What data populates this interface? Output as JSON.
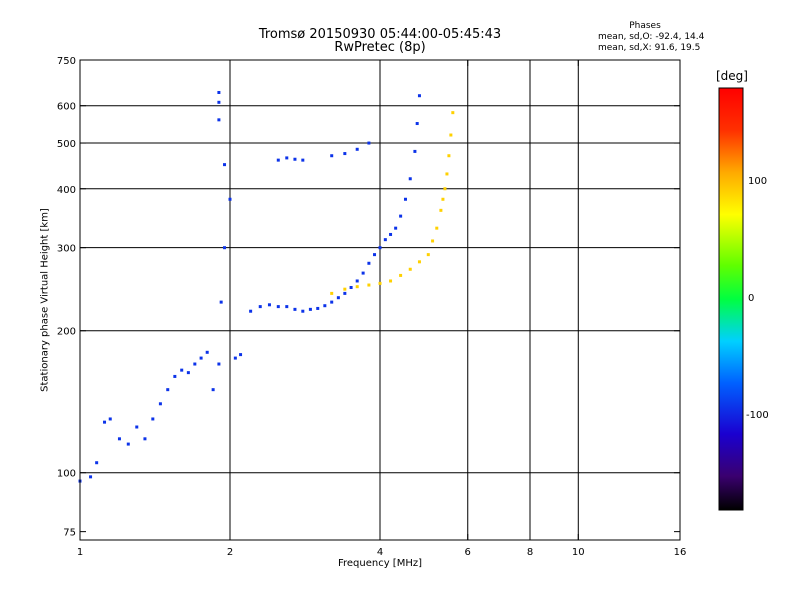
{
  "header": {
    "title_line1": "Tromsø 20150930 05:44:00-05:45:43",
    "title_line2": "RwPretec (8p)"
  },
  "stats": {
    "title": "Phases",
    "o_mode": "mean, sd,O: -92.4, 14.4",
    "x_mode": "mean, sd,X:  91.6, 19.5"
  },
  "colorbar": {
    "unit": "[deg]",
    "range": [
      -180,
      180
    ],
    "ticks": [
      "100",
      "0",
      "-100"
    ],
    "tick_values": [
      100,
      0,
      -100
    ]
  },
  "chart_data": {
    "type": "scatter",
    "title": "Tromsø 20150930 05:44:00-05:45:43",
    "subtitle": "RwPretec (8p)",
    "xlabel": "Frequency [MHz]",
    "ylabel": "Stationary phase Virtual Height [km]",
    "x_scale": "log",
    "y_scale": "log",
    "xlim": [
      1,
      16
    ],
    "ylim": [
      72,
      750
    ],
    "x_ticks": [
      1,
      2,
      4,
      6,
      8,
      10,
      16
    ],
    "x_tick_labels": [
      "1",
      "2",
      "4",
      "6",
      "8",
      "10",
      "16"
    ],
    "y_ticks": [
      75,
      100,
      200,
      300,
      400,
      500,
      600,
      750
    ],
    "y_tick_labels": [
      "75",
      "100",
      "200",
      "300",
      "400",
      "500",
      "600",
      "750"
    ],
    "x_gridlines": [
      2,
      4,
      6,
      8,
      10
    ],
    "y_gridlines": [
      100,
      200,
      300,
      400,
      500,
      600
    ],
    "grid": true,
    "color_variable": "phase [deg]",
    "series": [
      {
        "mode": "O",
        "phase_mean": -92.4,
        "x": [
          1.0,
          1.05,
          1.08,
          1.12,
          1.15,
          1.2,
          1.25,
          1.3,
          1.35,
          1.4,
          1.45,
          1.5,
          1.55,
          1.6,
          1.65,
          1.7,
          1.75,
          1.8,
          1.85,
          1.9,
          1.92,
          1.95,
          2.0,
          2.05,
          2.1,
          2.2,
          2.3,
          2.4,
          2.5,
          2.6,
          2.7,
          2.8,
          2.9,
          3.0,
          3.1,
          3.2,
          3.3,
          3.4,
          3.5,
          3.6,
          3.7,
          3.8,
          3.9,
          4.0,
          4.1,
          4.2,
          4.3,
          4.4,
          4.5,
          4.6,
          4.7,
          4.75,
          4.8,
          2.5,
          2.6,
          2.7,
          2.8,
          3.2,
          3.4,
          3.6,
          3.8,
          1.9,
          1.9,
          1.9,
          1.95
        ],
        "y": [
          96,
          98,
          105,
          128,
          130,
          118,
          115,
          125,
          118,
          130,
          140,
          150,
          160,
          165,
          163,
          170,
          175,
          180,
          150,
          170,
          230,
          300,
          380,
          175,
          178,
          220,
          225,
          227,
          225,
          225,
          222,
          220,
          222,
          223,
          226,
          230,
          235,
          240,
          247,
          255,
          265,
          278,
          290,
          300,
          312,
          320,
          330,
          350,
          380,
          420,
          480,
          550,
          630,
          460,
          465,
          462,
          460,
          470,
          475,
          485,
          500,
          560,
          610,
          640,
          450
        ]
      },
      {
        "mode": "X",
        "phase_mean": 91.6,
        "x": [
          3.2,
          3.4,
          3.6,
          3.8,
          4.0,
          4.2,
          4.4,
          4.6,
          4.8,
          5.0,
          5.1,
          5.2,
          5.3,
          5.35,
          5.4,
          5.45,
          5.5,
          5.55,
          5.6
        ],
        "y": [
          240,
          245,
          248,
          250,
          252,
          255,
          262,
          270,
          280,
          290,
          310,
          330,
          360,
          380,
          400,
          430,
          470,
          520,
          580
        ]
      }
    ]
  }
}
